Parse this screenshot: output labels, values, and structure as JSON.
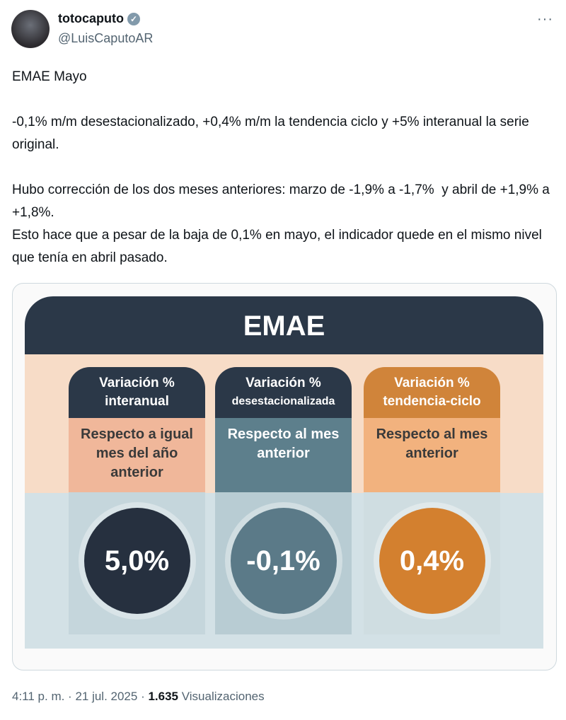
{
  "author": {
    "name": "totocaputo",
    "handle": "@LuisCaputoAR",
    "more": "···"
  },
  "tweet": {
    "text": "EMAE Mayo\n\n-0,1% m/m desestacionalizado, +0,4% m/m la tendencia ciclo y +5% interanual la serie original.\n\nHubo corrección de los dos meses anteriores: marzo de -1,9% a -1,7%  y abril de +1,9% a +1,8%.\nEsto hace que a pesar de la baja de 0,1% en mayo, el indicador quede en el mismo nivel que tenía en abril pasado."
  },
  "infographic": {
    "title": "EMAE",
    "columns": [
      {
        "h1": "Variación %",
        "h2": "interanual",
        "sub": "Respecto a igual mes del año anterior",
        "value": "5,0%",
        "color": "#2b3848",
        "sub_bg": "#f0b79a",
        "circle": "#26303f"
      },
      {
        "h1": "Variación %",
        "h2": "desestacionalizada",
        "sub": "Respecto al mes anterior",
        "value": "-0,1%",
        "color": "#2b3848",
        "sub_bg": "#5d7f8c",
        "circle": "#5b7a88"
      },
      {
        "h1": "Variación %",
        "h2": "tendencia-ciclo",
        "sub": "Respecto al mes anterior",
        "value": "0,4%",
        "color": "#d0843a",
        "sub_bg": "#f2b27e",
        "circle": "#d3802f"
      }
    ]
  },
  "footer": {
    "time": "4:11 p. m. · 21 jul. 2025 · ",
    "views": "1.635",
    "views_label": " Visualizaciones"
  }
}
